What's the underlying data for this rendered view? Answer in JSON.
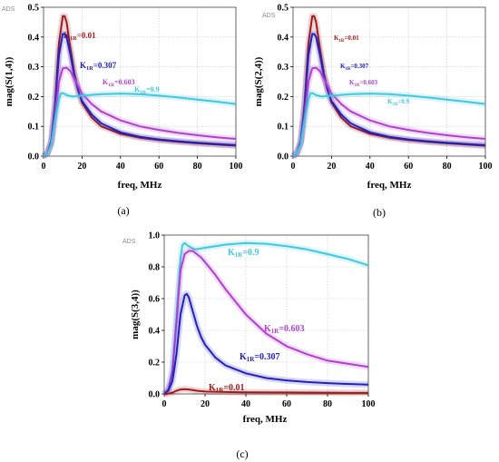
{
  "chart_data": [
    {
      "type": "line",
      "ads": "ADS",
      "caption": "(a)",
      "xlabel": "freq, MHz",
      "ylabel": "mag(S(1,4))",
      "xlim": [
        0,
        100
      ],
      "ylim": [
        0,
        0.5
      ],
      "xticks": [
        "0",
        "20",
        "40",
        "60",
        "80",
        "100"
      ],
      "yticks": [
        "0.0",
        "0.1",
        "0.2",
        "0.3",
        "0.4",
        "0.5"
      ],
      "series": [
        {
          "name": "K1R=0.01",
          "label_main": "K",
          "label_sub": "1R",
          "label_val": "=0.01",
          "color": "#a01a1a",
          "x": [
            0,
            2,
            4,
            6,
            8,
            10,
            11,
            12,
            14,
            16,
            18,
            20,
            25,
            30,
            40,
            50,
            60,
            70,
            80,
            90,
            100
          ],
          "y": [
            0,
            0.01,
            0.05,
            0.18,
            0.38,
            0.47,
            0.47,
            0.45,
            0.36,
            0.28,
            0.22,
            0.18,
            0.13,
            0.1,
            0.075,
            0.062,
            0.054,
            0.048,
            0.043,
            0.039,
            0.035
          ]
        },
        {
          "name": "K1R=0.307",
          "label_main": "K",
          "label_sub": "1R",
          "label_val": "=0.307",
          "color": "#2020c0",
          "x": [
            0,
            2,
            4,
            6,
            8,
            10,
            11,
            12,
            14,
            16,
            18,
            20,
            25,
            30,
            40,
            50,
            60,
            70,
            80,
            90,
            100
          ],
          "y": [
            0,
            0.01,
            0.05,
            0.17,
            0.34,
            0.41,
            0.41,
            0.4,
            0.34,
            0.27,
            0.22,
            0.185,
            0.14,
            0.11,
            0.08,
            0.065,
            0.056,
            0.05,
            0.045,
            0.041,
            0.037
          ]
        },
        {
          "name": "K1R=0.603",
          "label_main": "K",
          "label_sub": "1R",
          "label_val": "=0.603",
          "color": "#b040d0",
          "x": [
            0,
            2,
            4,
            6,
            8,
            10,
            12,
            14,
            16,
            18,
            20,
            25,
            30,
            40,
            50,
            60,
            70,
            80,
            90,
            100
          ],
          "y": [
            0,
            0.01,
            0.04,
            0.13,
            0.25,
            0.295,
            0.297,
            0.285,
            0.26,
            0.235,
            0.21,
            0.175,
            0.15,
            0.12,
            0.1,
            0.088,
            0.078,
            0.07,
            0.063,
            0.058
          ]
        },
        {
          "name": "K1R=0.9",
          "label_main": "K",
          "label_sub": "1R",
          "label_val": "=0.9",
          "color": "#40c8e0",
          "x": [
            0,
            2,
            4,
            6,
            8,
            9,
            10,
            12,
            15,
            20,
            30,
            40,
            50,
            60,
            70,
            80,
            90,
            100
          ],
          "y": [
            0,
            0.01,
            0.04,
            0.12,
            0.19,
            0.21,
            0.212,
            0.205,
            0.2,
            0.203,
            0.208,
            0.21,
            0.208,
            0.203,
            0.197,
            0.19,
            0.183,
            0.175
          ]
        }
      ]
    },
    {
      "type": "line",
      "ads": "ADS",
      "caption": "(b)",
      "xlabel": "freq, MHz",
      "ylabel": "mag(S(2,4))",
      "xlim": [
        0,
        100
      ],
      "ylim": [
        0,
        0.5
      ],
      "xticks": [
        "0",
        "20",
        "40",
        "60",
        "80",
        "100"
      ],
      "yticks": [
        "0.0",
        "0.1",
        "0.2",
        "0.3",
        "0.4",
        "0.5"
      ],
      "series": [
        {
          "name": "K1R=0.01",
          "label_main": "K",
          "label_sub": "1R",
          "label_val": "=0.01",
          "color": "#a01a1a",
          "x": [
            0,
            2,
            4,
            6,
            8,
            10,
            11,
            12,
            14,
            16,
            18,
            20,
            25,
            30,
            40,
            50,
            60,
            70,
            80,
            90,
            100
          ],
          "y": [
            0,
            0.01,
            0.05,
            0.18,
            0.38,
            0.47,
            0.47,
            0.45,
            0.36,
            0.28,
            0.22,
            0.18,
            0.13,
            0.1,
            0.075,
            0.062,
            0.054,
            0.048,
            0.043,
            0.039,
            0.035
          ]
        },
        {
          "name": "K1R=0.307",
          "label_main": "K",
          "label_sub": "1R",
          "label_val": "=0.307",
          "color": "#2020c0",
          "x": [
            0,
            2,
            4,
            6,
            8,
            10,
            11,
            12,
            14,
            16,
            18,
            20,
            25,
            30,
            40,
            50,
            60,
            70,
            80,
            90,
            100
          ],
          "y": [
            0,
            0.01,
            0.05,
            0.17,
            0.34,
            0.41,
            0.41,
            0.4,
            0.34,
            0.27,
            0.22,
            0.185,
            0.14,
            0.11,
            0.08,
            0.065,
            0.056,
            0.05,
            0.045,
            0.041,
            0.037
          ]
        },
        {
          "name": "K1R=0.603",
          "label_main": "K",
          "label_sub": "1R",
          "label_val": "=0.603",
          "color": "#b040d0",
          "x": [
            0,
            2,
            4,
            6,
            8,
            10,
            12,
            14,
            16,
            18,
            20,
            25,
            30,
            40,
            50,
            60,
            70,
            80,
            90,
            100
          ],
          "y": [
            0,
            0.01,
            0.04,
            0.13,
            0.25,
            0.295,
            0.297,
            0.285,
            0.26,
            0.235,
            0.21,
            0.175,
            0.15,
            0.12,
            0.1,
            0.088,
            0.078,
            0.07,
            0.063,
            0.058
          ]
        },
        {
          "name": "K1R=0.9",
          "label_main": "K",
          "label_sub": "1R",
          "label_val": "=0.9",
          "color": "#40c8e0",
          "x": [
            0,
            2,
            4,
            6,
            8,
            9,
            10,
            12,
            15,
            20,
            30,
            40,
            50,
            60,
            70,
            80,
            90,
            100
          ],
          "y": [
            0,
            0.01,
            0.04,
            0.12,
            0.19,
            0.21,
            0.212,
            0.205,
            0.2,
            0.203,
            0.208,
            0.21,
            0.208,
            0.203,
            0.197,
            0.19,
            0.183,
            0.175
          ]
        }
      ]
    },
    {
      "type": "line",
      "ads": "ADS",
      "caption": "(c)",
      "xlabel": "freq, MHz",
      "ylabel": "mag(S(3,4))",
      "xlim": [
        0,
        100
      ],
      "ylim": [
        0,
        1.0
      ],
      "xticks": [
        "0",
        "20",
        "40",
        "60",
        "80",
        "100"
      ],
      "yticks": [
        "0.0",
        "0.2",
        "0.4",
        "0.6",
        "0.8",
        "1.0"
      ],
      "series": [
        {
          "name": "K1R=0.9",
          "label_main": "K",
          "label_sub": "1R",
          "label_val": "=0.9",
          "color": "#40c8e0",
          "x": [
            0,
            2,
            4,
            6,
            8,
            9,
            10,
            12,
            15,
            20,
            30,
            40,
            50,
            60,
            70,
            80,
            90,
            100
          ],
          "y": [
            0,
            0.03,
            0.15,
            0.5,
            0.86,
            0.94,
            0.95,
            0.93,
            0.91,
            0.92,
            0.94,
            0.95,
            0.945,
            0.93,
            0.91,
            0.88,
            0.85,
            0.81
          ]
        },
        {
          "name": "K1R=0.603",
          "label_main": "K",
          "label_sub": "1R",
          "label_val": "=0.603",
          "color": "#b040d0",
          "x": [
            0,
            2,
            4,
            6,
            8,
            10,
            12,
            14,
            16,
            18,
            20,
            25,
            30,
            40,
            50,
            60,
            70,
            80,
            90,
            100
          ],
          "y": [
            0,
            0.03,
            0.14,
            0.45,
            0.78,
            0.88,
            0.9,
            0.9,
            0.88,
            0.86,
            0.83,
            0.75,
            0.66,
            0.5,
            0.38,
            0.3,
            0.25,
            0.21,
            0.19,
            0.17
          ]
        },
        {
          "name": "K1R=0.307",
          "label_main": "K",
          "label_sub": "1R",
          "label_val": "=0.307",
          "color": "#2020c0",
          "x": [
            0,
            2,
            4,
            6,
            8,
            10,
            11,
            12,
            14,
            16,
            18,
            20,
            25,
            30,
            40,
            50,
            60,
            70,
            80,
            90,
            100
          ],
          "y": [
            0,
            0.02,
            0.08,
            0.25,
            0.5,
            0.62,
            0.63,
            0.61,
            0.52,
            0.43,
            0.36,
            0.31,
            0.23,
            0.18,
            0.13,
            0.1,
            0.085,
            0.075,
            0.068,
            0.063,
            0.058
          ]
        },
        {
          "name": "K1R=0.01",
          "label_main": "K",
          "label_sub": "1R",
          "label_val": "=0.01",
          "color": "#a01a1a",
          "x": [
            0,
            2,
            4,
            6,
            8,
            10,
            12,
            14,
            16,
            20,
            30,
            40,
            60,
            80,
            100
          ],
          "y": [
            0,
            0.002,
            0.008,
            0.02,
            0.028,
            0.03,
            0.028,
            0.024,
            0.02,
            0.015,
            0.012,
            0.01,
            0.009,
            0.008,
            0.007
          ]
        }
      ]
    }
  ]
}
